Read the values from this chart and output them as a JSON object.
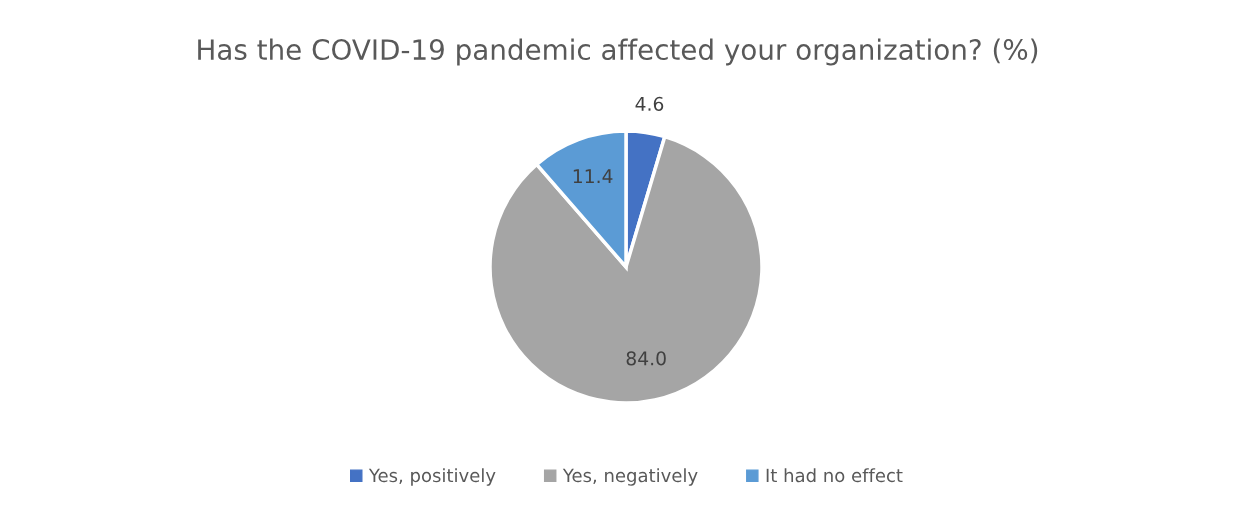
{
  "chart_data": {
    "type": "pie",
    "title": "Has the COVID-19 pandemic affected your organization? (%)",
    "categories": [
      "Yes, positively",
      "Yes, negatively",
      "It had no effect"
    ],
    "values": [
      4.6,
      84.0,
      11.4
    ],
    "value_labels": [
      "4.6",
      "84.0",
      "11.4"
    ],
    "colors": [
      "#4472c4",
      "#a5a5a5",
      "#5b9bd5"
    ],
    "legend": "bottom"
  }
}
